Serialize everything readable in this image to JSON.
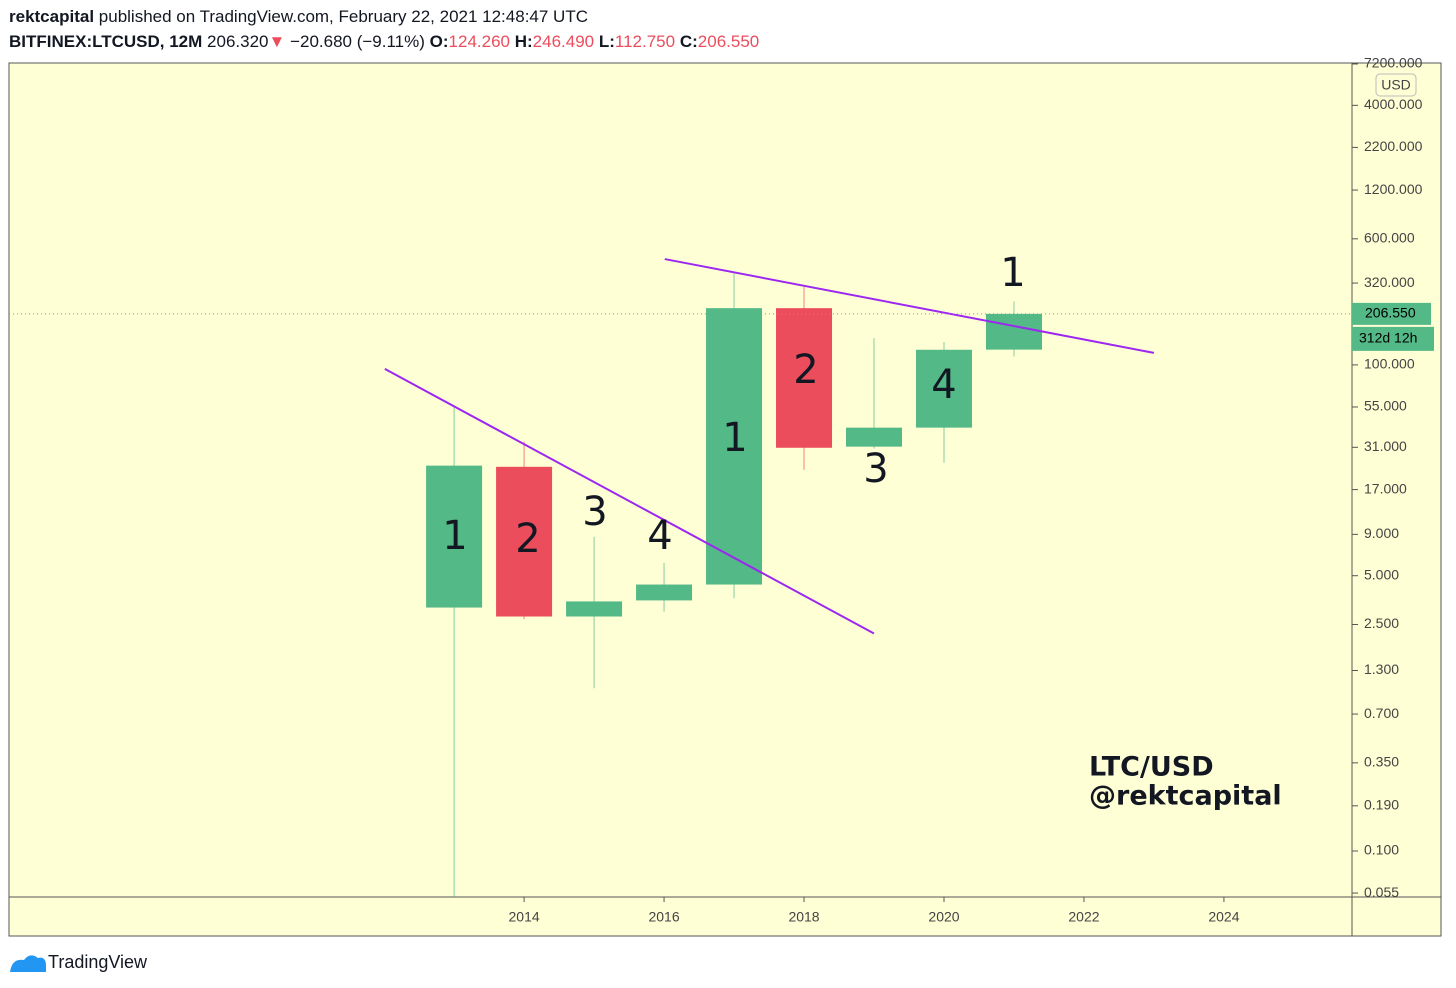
{
  "header": {
    "author": "rektcapital",
    "published": "published on TradingView.com, February 22, 2021 12:48:47 UTC",
    "symbol": "BITFINEX:LTCUSD, 12M",
    "last": "206.320",
    "arrow": "▼",
    "change": "−20.680 (−9.11%)",
    "ohlc": [
      {
        "key": "O:",
        "value": "124.260"
      },
      {
        "key": "H:",
        "value": "246.490"
      },
      {
        "key": "L:",
        "value": "112.750"
      },
      {
        "key": "C:",
        "value": "206.550"
      }
    ]
  },
  "chart_data": {
    "type": "candlestick",
    "log_scale": true,
    "grid": false,
    "x": [
      2013,
      2014,
      2015,
      2016,
      2017,
      2018,
      2019,
      2020,
      2021
    ],
    "open": [
      3.18,
      23.5,
      2.8,
      3.52,
      4.41,
      224,
      31.3,
      41.0,
      124.26
    ],
    "high": [
      55.9,
      33.6,
      8.7,
      6.0,
      369,
      303,
      146.6,
      138.6,
      246.49
    ],
    "low": [
      0.048,
      2.7,
      1.01,
      3.0,
      3.62,
      22.5,
      30.5,
      24.9,
      112.75
    ],
    "close": [
      23.9,
      2.8,
      3.47,
      4.41,
      224,
      30.8,
      41.0,
      124,
      206.55
    ],
    "up_color": "#53b987",
    "down_color": "#eb4d5c",
    "xlim": [
      2006.64,
      2025.83
    ],
    "xticks": [
      2014,
      2016,
      2018,
      2020,
      2022,
      2024
    ],
    "ylim": [
      0.052,
      7300
    ],
    "yticks": [
      {
        "value": 7200,
        "label": "7200.000"
      },
      {
        "value": 4000,
        "label": "4000.000"
      },
      {
        "value": 2200,
        "label": "2200.000"
      },
      {
        "value": 1200,
        "label": "1200.000"
      },
      {
        "value": 600,
        "label": "600.000"
      },
      {
        "value": 320,
        "label": "320.000"
      },
      {
        "value": 100,
        "label": "100.000"
      },
      {
        "value": 55,
        "label": "55.000"
      },
      {
        "value": 31,
        "label": "31.000"
      },
      {
        "value": 17,
        "label": "17.000"
      },
      {
        "value": 9,
        "label": "9.000"
      },
      {
        "value": 5,
        "label": "5.000"
      },
      {
        "value": 2.5,
        "label": "2.500"
      },
      {
        "value": 1.3,
        "label": "1.300"
      },
      {
        "value": 0.7,
        "label": "0.700"
      },
      {
        "value": 0.35,
        "label": "0.350"
      },
      {
        "value": 0.19,
        "label": "0.190"
      },
      {
        "value": 0.1,
        "label": "0.100"
      },
      {
        "value": 0.055,
        "label": "0.055"
      }
    ],
    "currency": "USD",
    "last_price": {
      "value": 206.55,
      "label": "206.550"
    },
    "countdown": "312d 12h",
    "trendlines": [
      {
        "x": [
          2012.01,
          2019.0
        ],
        "y": [
          94.5,
          2.2
        ],
        "color": "#9c27f0"
      },
      {
        "x": [
          2016.01,
          2023.0
        ],
        "y": [
          450,
          118.6
        ],
        "color": "#9c27f0"
      }
    ],
    "annotations": [
      "1",
      "2",
      "3",
      "4",
      "1",
      "2",
      "3",
      "4",
      "1"
    ],
    "watermark": [
      "LTC/USD",
      "@rektcapital"
    ]
  },
  "footer": {
    "brand": "TradingView"
  }
}
